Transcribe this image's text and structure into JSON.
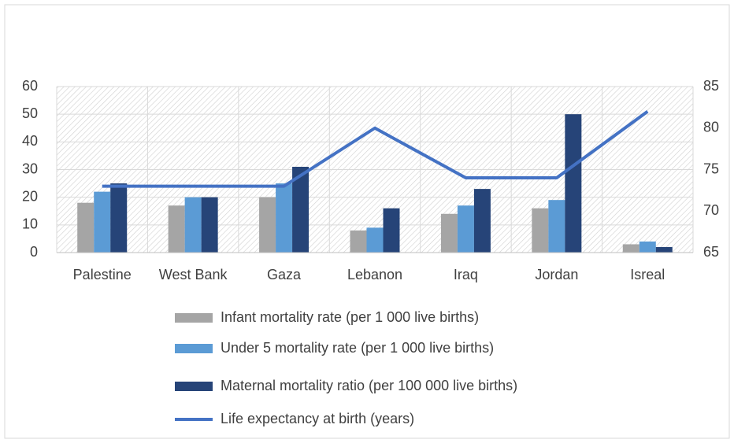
{
  "chart_data": {
    "type": "bar",
    "categories": [
      "Palestine",
      "West Bank",
      "Gaza",
      "Lebanon",
      "Iraq",
      "Jordan",
      "Isreal"
    ],
    "series": [
      {
        "name": "Infant mortality rate (per 1 000 live births)",
        "color": "#a5a5a5",
        "values": [
          18,
          17,
          20,
          8,
          14,
          16,
          3
        ]
      },
      {
        "name": "Under 5 mortality rate (per 1 000 live births)",
        "color": "#5b9bd5",
        "values": [
          22,
          20,
          25,
          9,
          17,
          19,
          4
        ]
      },
      {
        "name": "Maternal mortality ratio (per 100 000 live births)",
        "color": "#264478",
        "values": [
          25,
          20,
          31,
          16,
          23,
          50,
          2
        ]
      },
      {
        "name": "Life expectancy at birth (years)",
        "color": "#4472c4",
        "type": "line",
        "axis": "y2",
        "values": [
          73,
          73,
          73,
          80,
          74,
          74,
          82
        ]
      }
    ],
    "ylim": [
      0,
      60
    ],
    "yticks": [
      0,
      10,
      20,
      30,
      40,
      50,
      60
    ],
    "y2lim": [
      65,
      85
    ],
    "y2ticks": [
      65,
      70,
      75,
      80,
      85
    ],
    "grid": true
  }
}
